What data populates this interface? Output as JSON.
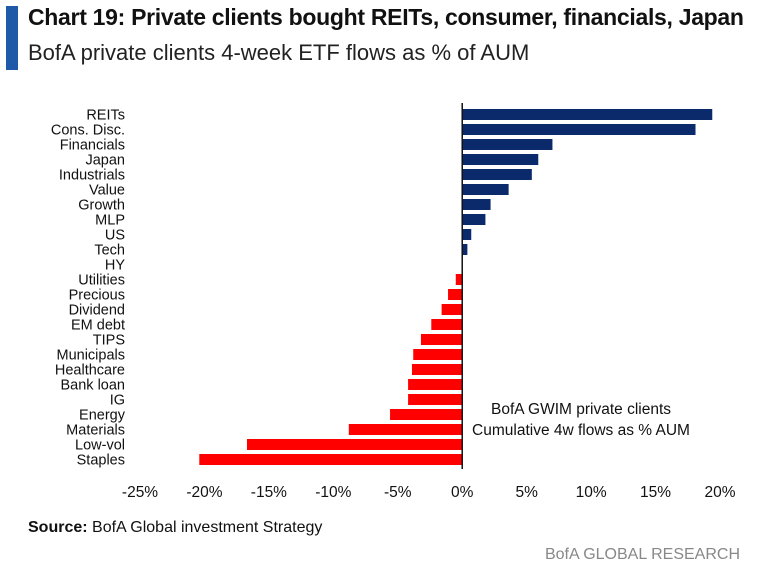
{
  "header": {
    "title": "Chart 19: Private clients bought REITs, consumer, financials, Japan",
    "subtitle": "BofA private clients 4-week ETF flows as % of AUM",
    "accent_color": "#1f5aa8"
  },
  "chart_data": {
    "type": "bar",
    "orientation": "horizontal",
    "categories": [
      "REITs",
      "Cons. Disc.",
      "Financials",
      "Japan",
      "Industrials",
      "Value",
      "Growth",
      "MLP",
      "US",
      "Tech",
      "HY",
      "Utilities",
      "Precious",
      "Dividend",
      "EM debt",
      "TIPS",
      "Municipals",
      "Healthcare",
      "Bank loan",
      "IG",
      "Energy",
      "Materials",
      "Low-vol",
      "Staples"
    ],
    "values": [
      19.4,
      18.1,
      7.0,
      5.9,
      5.4,
      3.6,
      2.2,
      1.8,
      0.7,
      0.4,
      0.0,
      -0.5,
      -1.1,
      -1.6,
      -2.4,
      -3.2,
      -3.8,
      -3.9,
      -4.2,
      -4.2,
      -5.6,
      -8.8,
      -16.7,
      -20.4
    ],
    "positive_color": "#0b2a6b",
    "negative_color": "#ff0000",
    "xlim": [
      -25,
      20
    ],
    "xticks": [
      -25,
      -20,
      -15,
      -10,
      -5,
      0,
      5,
      10,
      15,
      20
    ],
    "xtick_labels": [
      "-25%",
      "-20%",
      "-15%",
      "-10%",
      "-5%",
      "0%",
      "5%",
      "10%",
      "15%",
      "20%"
    ],
    "xlabel": "",
    "ylabel": "",
    "annotation": [
      "BofA GWIM private clients",
      "Cumulative 4w flows as % AUM"
    ],
    "grid": false
  },
  "footer": {
    "source_label": "Source:",
    "source_text": " BofA Global investment Strategy",
    "brand": "BofA GLOBAL RESEARCH"
  }
}
